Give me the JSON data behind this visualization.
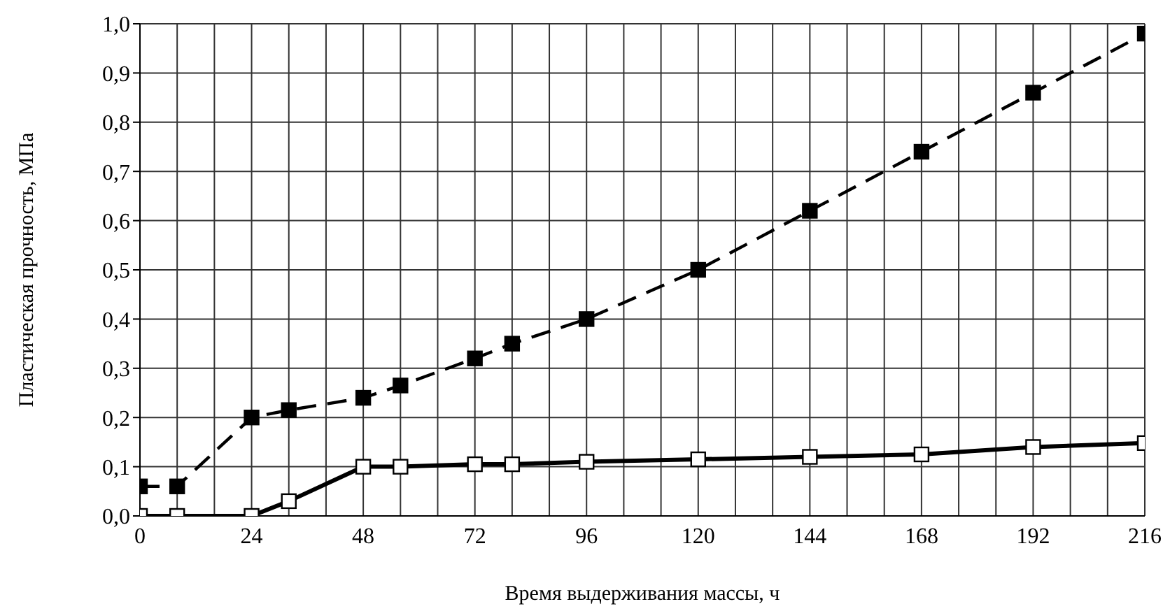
{
  "chart_data": {
    "type": "line",
    "xlabel": "Время выдерживания массы, ч",
    "ylabel": "Пластическая прочность, МПа",
    "xlim": [
      0,
      216
    ],
    "xticks": [
      0,
      {
        "value": 8,
        "label": null
      },
      {
        "value": 16,
        "label": null
      },
      24,
      {
        "value": 32,
        "label": null
      },
      {
        "value": 40,
        "label": null
      },
      48,
      {
        "value": 56,
        "label": null
      },
      {
        "value": 64,
        "label": null
      },
      72,
      {
        "value": 80,
        "label": null
      },
      {
        "value": 88,
        "label": null
      },
      96,
      {
        "value": 104,
        "label": null
      },
      {
        "value": 112,
        "label": null
      },
      120,
      {
        "value": 128,
        "label": null
      },
      {
        "value": 136,
        "label": null
      },
      144,
      {
        "value": 152,
        "label": null
      },
      {
        "value": 160,
        "label": null
      },
      168,
      {
        "value": 176,
        "label": null
      },
      {
        "value": 184,
        "label": null
      },
      192,
      {
        "value": 200,
        "label": null
      },
      {
        "value": 208,
        "label": null
      },
      216
    ],
    "ylim": [
      0,
      1
    ],
    "yticks": [
      {
        "value": 0,
        "label": "0,0"
      },
      {
        "value": 0.1,
        "label": "0,1"
      },
      {
        "value": 0.2,
        "label": "0,2"
      },
      {
        "value": 0.3,
        "label": "0,3"
      },
      {
        "value": 0.4,
        "label": "0,4"
      },
      {
        "value": 0.5,
        "label": "0,5"
      },
      {
        "value": 0.6,
        "label": "0,6"
      },
      {
        "value": 0.7,
        "label": "0,7"
      },
      {
        "value": 0.8,
        "label": "0,8"
      },
      {
        "value": 0.9,
        "label": "0,9"
      },
      {
        "value": 1,
        "label": "1,0"
      }
    ],
    "grid": true,
    "marker": "square",
    "series": [
      {
        "color": "#000000",
        "line_style": "dashed",
        "x": [
          0,
          8,
          24,
          32,
          48,
          56,
          72,
          80,
          96,
          120,
          144,
          168,
          192,
          216
        ],
        "values": [
          0.06,
          0.06,
          0.2,
          0.215,
          0.24,
          0.265,
          0.32,
          0.35,
          0.4,
          0.5,
          0.62,
          0.74,
          0.86,
          0.98
        ]
      },
      {
        "color": "#000000",
        "line_style": "solid",
        "x": [
          0,
          8,
          24,
          32,
          48,
          56,
          72,
          80,
          96,
          120,
          144,
          168,
          192,
          216
        ],
        "values": [
          0,
          0,
          0,
          0.03,
          0.1,
          0.1,
          0.105,
          0.105,
          0.11,
          0.115,
          0.12,
          0.125,
          0.14,
          0.148
        ]
      }
    ]
  }
}
